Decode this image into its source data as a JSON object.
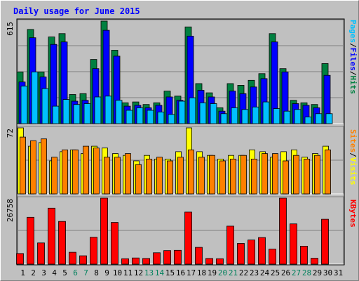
{
  "chart_data": {
    "type": "bar",
    "title": "Daily usage for June 2015",
    "days": [
      "1",
      "2",
      "3",
      "4",
      "5",
      "6",
      "7",
      "8",
      "9",
      "10",
      "11",
      "12",
      "13",
      "14",
      "15",
      "16",
      "17",
      "18",
      "19",
      "20",
      "21",
      "22",
      "23",
      "24",
      "25",
      "26",
      "27",
      "28",
      "29",
      "30",
      "31"
    ],
    "weekend_days": [
      "6",
      "7",
      "13",
      "14",
      "20",
      "21",
      "27",
      "28"
    ],
    "hits_panel": {
      "max_label": "615",
      "ymax": 615,
      "series": [
        {
          "name": "Hits",
          "color": "#008040",
          "values": [
            310,
            565,
            310,
            520,
            540,
            175,
            180,
            385,
            615,
            440,
            125,
            130,
            115,
            125,
            195,
            165,
            580,
            240,
            185,
            95,
            240,
            230,
            260,
            300,
            540,
            330,
            140,
            125,
            115,
            360,
            0
          ]
        },
        {
          "name": "Files",
          "color": "#0000ff",
          "values": [
            250,
            515,
            280,
            475,
            490,
            135,
            140,
            330,
            560,
            405,
            105,
            110,
            95,
            110,
            160,
            140,
            525,
            200,
            160,
            75,
            195,
            180,
            220,
            270,
            490,
            310,
            120,
            110,
            95,
            290,
            0
          ]
        },
        {
          "name": "Pages",
          "color": "#00c0ff",
          "values": [
            225,
            310,
            210,
            105,
            145,
            115,
            120,
            160,
            165,
            140,
            80,
            95,
            80,
            70,
            55,
            135,
            155,
            125,
            120,
            60,
            95,
            85,
            100,
            130,
            90,
            75,
            85,
            40,
            60,
            60,
            0
          ]
        }
      ]
    },
    "visits_panel": {
      "max_label": "72",
      "ymax": 72,
      "series": [
        {
          "name": "Visits",
          "color": "#ffff00",
          "values": [
            72,
            52,
            56,
            36,
            46,
            48,
            44,
            52,
            50,
            44,
            42,
            36,
            42,
            38,
            38,
            46,
            72,
            46,
            42,
            38,
            42,
            42,
            48,
            46,
            40,
            46,
            48,
            40,
            44,
            52,
            0
          ]
        },
        {
          "name": "Sites",
          "color": "#ff8000",
          "values": [
            62,
            58,
            60,
            40,
            48,
            48,
            52,
            50,
            40,
            40,
            44,
            32,
            38,
            40,
            36,
            40,
            48,
            40,
            42,
            36,
            38,
            42,
            38,
            44,
            44,
            36,
            42,
            38,
            42,
            48,
            0
          ]
        }
      ]
    },
    "kbytes_panel": {
      "max_label": "26758",
      "ymax": 26758,
      "series": [
        {
          "name": "KBytes",
          "color": "#ff0000",
          "values": [
            4300,
            19000,
            8600,
            22700,
            17300,
            4800,
            3400,
            10900,
            26758,
            16900,
            2200,
            2500,
            2300,
            4600,
            5500,
            5600,
            21100,
            6800,
            2300,
            2200,
            15400,
            8400,
            9800,
            10800,
            6100,
            26758,
            16300,
            7300,
            2400,
            18200,
            0
          ]
        }
      ]
    },
    "legend_right_top": [
      "Pages",
      "Files",
      "Hits"
    ],
    "legend_right_mid": [
      "Sites",
      "Visits"
    ],
    "legend_right_bot": [
      "KBytes"
    ]
  },
  "colors": {
    "title": "#0000ff",
    "panel_bg": "#c0c0c0",
    "axis": "#000000",
    "weekday_label": "#000000",
    "weekend_label": "#00805c",
    "bar_edge": "#000000"
  }
}
